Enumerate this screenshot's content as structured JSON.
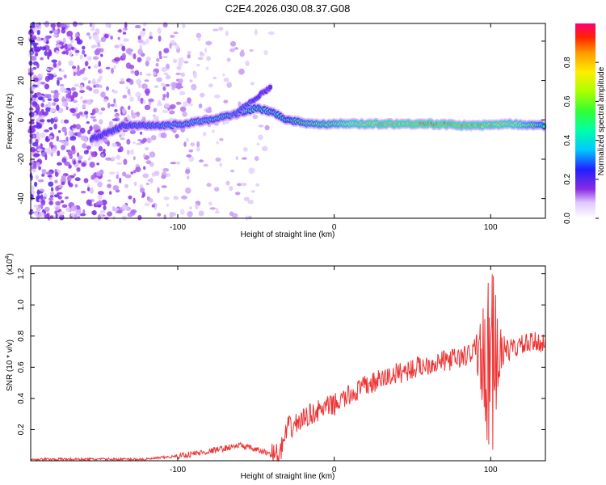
{
  "chart_data": [
    {
      "type": "heatmap",
      "title": "C2E4.2026.030.08.37.G08",
      "xlabel": "Height of straight line (km)",
      "ylabel": "Frequency (Hz)",
      "xlim": [
        -194,
        135
      ],
      "ylim": [
        -50,
        49
      ],
      "xticks": [
        -100,
        0,
        100
      ],
      "yticks": [
        -40,
        -20,
        0,
        20,
        40
      ],
      "colorbar": {
        "label": "Normalized spectral amplitude",
        "range": [
          0,
          1
        ],
        "ticks": [
          "0.0",
          "0.2",
          "0.4",
          "0.6",
          "0.8"
        ]
      },
      "main_trace": {
        "description_points": [
          {
            "x": -155,
            "y": -10,
            "amp": 0.25
          },
          {
            "x": -135,
            "y": -3,
            "amp": 0.3
          },
          {
            "x": -110,
            "y": -3,
            "amp": 0.35
          },
          {
            "x": -95,
            "y": -2,
            "amp": 0.4
          },
          {
            "x": -80,
            "y": 0,
            "amp": 0.45
          },
          {
            "x": -62,
            "y": 3,
            "amp": 0.5
          },
          {
            "x": -50,
            "y": 6,
            "amp": 0.55
          },
          {
            "x": -40,
            "y": 4,
            "amp": 0.5
          },
          {
            "x": -30,
            "y": 0,
            "amp": 0.55
          },
          {
            "x": -15,
            "y": -2,
            "amp": 0.65
          },
          {
            "x": 0,
            "y": -2,
            "amp": 0.7
          },
          {
            "x": 20,
            "y": -2,
            "amp": 0.85
          },
          {
            "x": 60,
            "y": -2,
            "amp": 0.95
          },
          {
            "x": 90,
            "y": -3,
            "amp": 0.9
          },
          {
            "x": 110,
            "y": -2,
            "amp": 0.85
          },
          {
            "x": 135,
            "y": -3,
            "amp": 0.6
          }
        ],
        "branch_points": [
          {
            "x": -65,
            "y": 2,
            "amp": 0.35
          },
          {
            "x": -52,
            "y": 10,
            "amp": 0.3
          },
          {
            "x": -40,
            "y": 17,
            "amp": 0.15
          }
        ]
      }
    },
    {
      "type": "line",
      "title": "",
      "xlabel": "Height of straight line (km)",
      "ylabel": "SNR (10 * v/v)",
      "y_multiplier": "(x10",
      "y_multiplier_exp": "4",
      "y_multiplier_close": ")",
      "xlim": [
        -194,
        135
      ],
      "ylim": [
        0,
        1.25
      ],
      "xticks": [
        -100,
        0,
        100
      ],
      "yticks": [
        "0.2",
        "0.4",
        "0.6",
        "0.8",
        "1.0",
        "1.2"
      ],
      "series": [
        {
          "name": "SNR",
          "color": "#ee3333",
          "envelope": [
            {
              "x": -194,
              "y": 0.01
            },
            {
              "x": -120,
              "y": 0.01
            },
            {
              "x": -100,
              "y": 0.03
            },
            {
              "x": -80,
              "y": 0.06
            },
            {
              "x": -60,
              "y": 0.1
            },
            {
              "x": -50,
              "y": 0.07
            },
            {
              "x": -35,
              "y": 0.03
            },
            {
              "x": -30,
              "y": 0.2
            },
            {
              "x": -15,
              "y": 0.3
            },
            {
              "x": 0,
              "y": 0.36
            },
            {
              "x": 20,
              "y": 0.48
            },
            {
              "x": 40,
              "y": 0.56
            },
            {
              "x": 60,
              "y": 0.62
            },
            {
              "x": 80,
              "y": 0.66
            },
            {
              "x": 92,
              "y": 0.7
            },
            {
              "x": 100,
              "y": 0.6
            },
            {
              "x": 108,
              "y": 0.7
            },
            {
              "x": 120,
              "y": 0.74
            },
            {
              "x": 135,
              "y": 0.77
            }
          ]
        }
      ]
    }
  ]
}
